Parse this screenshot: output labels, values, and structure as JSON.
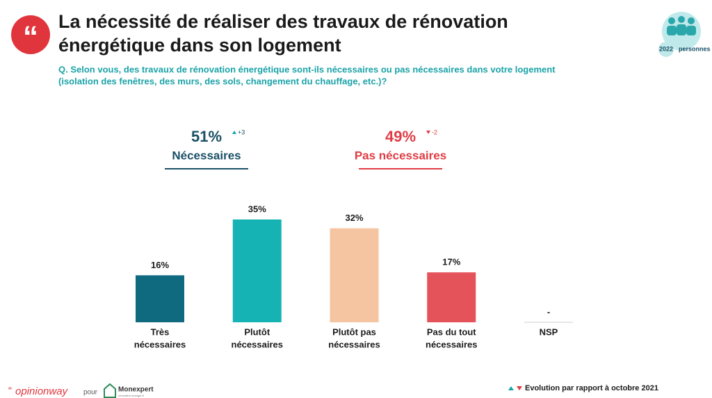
{
  "header": {
    "title_lines": [
      "La nécessité de réaliser des travaux de rénovation",
      "énergétique dans son logement"
    ],
    "question_lines": [
      "Q. Selon vous, des travaux de rénovation énergétique sont-ils nécessaires ou pas nécessaires dans votre logement",
      "(isolation des fenêtres, des murs, des sols, changement du chauffage, etc.)?"
    ],
    "sample_count": 2022,
    "sample_label": "personnes"
  },
  "summary": [
    {
      "value": 51,
      "value_label": "51%",
      "label": "Nécessaires",
      "change": 3,
      "change_label": "+3",
      "color": "#1a4f66"
    },
    {
      "value": 49,
      "value_label": "49%",
      "label": "Pas nécessaires",
      "change": -2,
      "change_label": "-2",
      "color": "#e03c44"
    }
  ],
  "chart_data": {
    "type": "bar",
    "categories": [
      [
        "Très",
        "nécessaires"
      ],
      [
        "Plutôt",
        "nécessaires"
      ],
      [
        "Plutôt pas",
        "nécessaires"
      ],
      [
        "Pas du tout",
        "nécessaires"
      ],
      [
        "NSP"
      ]
    ],
    "values": [
      16,
      35,
      32,
      17,
      null
    ],
    "value_labels": [
      "16%",
      "35%",
      "32%",
      "17%",
      "-"
    ],
    "colors": [
      "#0f6a80",
      "#16b3b5",
      "#f5c4a1",
      "#e5535a",
      "#999999"
    ]
  },
  "footer": {
    "brand": "opinionway",
    "quote_mark": "“",
    "for": "pour",
    "partner": "Monexpert",
    "partner_site": "renovation-energie.fr",
    "legend": "Evolution par rapport à octobre 2021"
  }
}
